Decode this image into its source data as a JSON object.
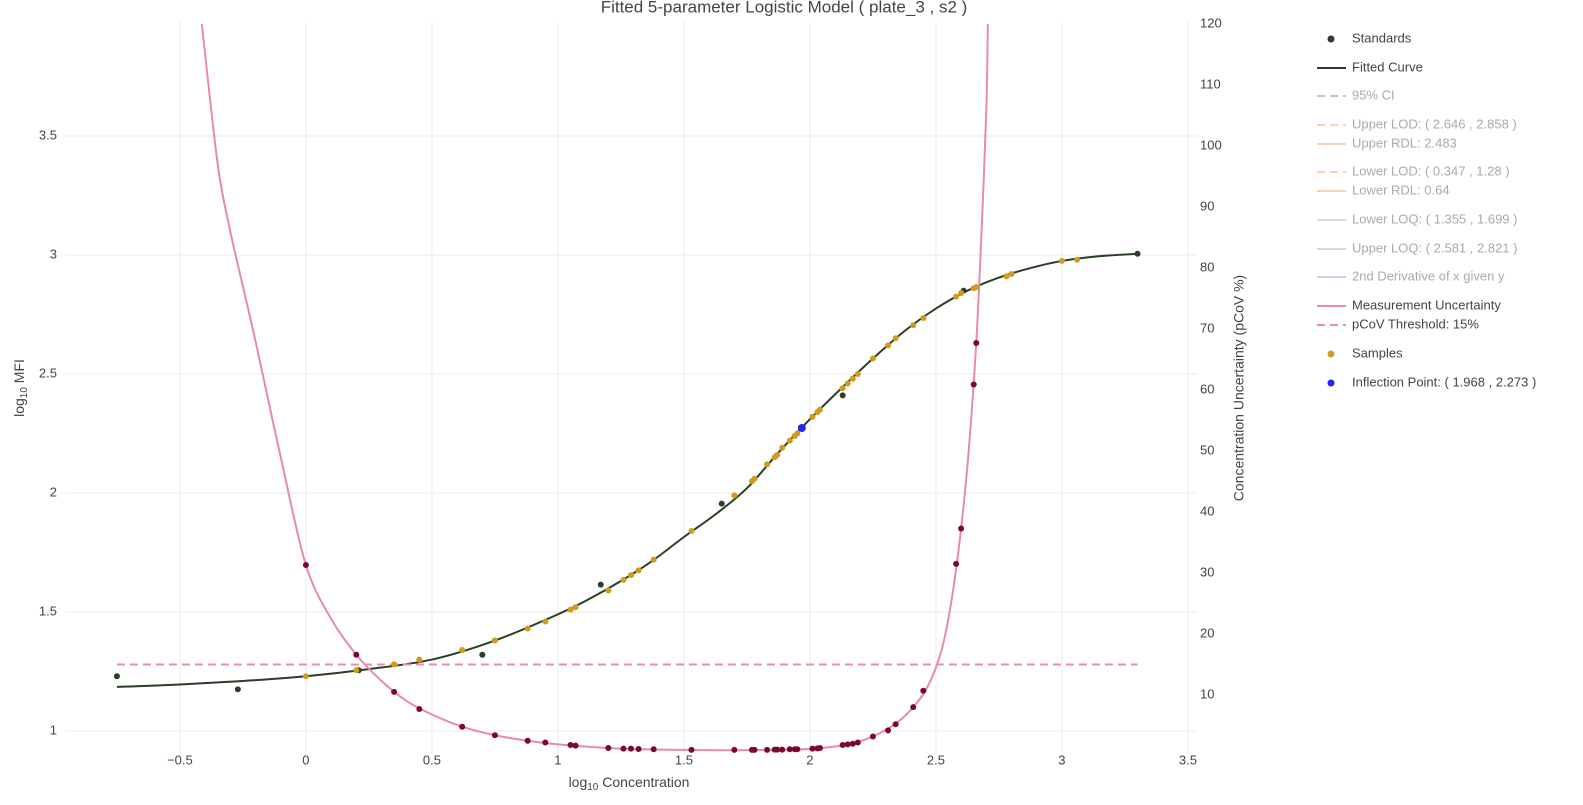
{
  "chart_data": {
    "type": "scatter",
    "title": "Fitted 5-parameter Logistic Model ( plate_3 , s2 )",
    "x_label": [
      "log",
      "10",
      " Concentration"
    ],
    "y_label": [
      "log",
      "10",
      " MFI"
    ],
    "y2_label": "Concentration Uncertainty (pCoV %)",
    "xlim": [
      -0.956,
      3.536
    ],
    "ylim": [
      0.899,
      3.979
    ],
    "y2lim": [
      0.16,
      120.33
    ],
    "xticks": [
      {
        "value": -0.5,
        "label": "−0.5"
      },
      0,
      0.5,
      1,
      1.5,
      2,
      2.5,
      3,
      3.5
    ],
    "yticks": [
      1,
      1.5,
      2,
      2.5,
      3,
      3.5
    ],
    "y2ticks": [
      10,
      20,
      30,
      40,
      50,
      60,
      70,
      80,
      90,
      100,
      110,
      120
    ],
    "grid": true,
    "series": [
      {
        "name": "Standards",
        "color": "#2c3e27",
        "mode": "markers",
        "x": [
          -0.75,
          -0.27,
          0.21,
          0.7,
          1.17,
          1.65,
          2.13,
          2.61,
          3.3
        ],
        "values": [
          1.23,
          1.175,
          1.255,
          1.32,
          1.615,
          1.955,
          2.41,
          2.85,
          3.005
        ]
      },
      {
        "name": "Fitted Curve",
        "color": "#2a3f25",
        "mode": "lines",
        "x": [
          -0.75,
          -0.5,
          -0.25,
          0,
          0.25,
          0.5,
          0.75,
          1.0,
          1.125,
          1.25,
          1.375,
          1.5,
          1.625,
          1.75,
          1.875,
          2.0,
          2.125,
          2.25,
          2.375,
          2.5,
          2.625,
          2.75,
          2.875,
          3.0,
          3.15,
          3.3
        ],
        "values": [
          1.185,
          1.195,
          1.21,
          1.23,
          1.26,
          1.3,
          1.38,
          1.49,
          1.555,
          1.63,
          1.715,
          1.815,
          1.91,
          2.02,
          2.17,
          2.31,
          2.44,
          2.565,
          2.68,
          2.775,
          2.85,
          2.905,
          2.945,
          2.975,
          2.995,
          3.005
        ]
      },
      {
        "name": "95% CI",
        "color": "#8a8a8a",
        "mode": "lines",
        "dash": true,
        "visible": false
      },
      {
        "name": "Upper LOD: ( 2.646 , 2.858 )",
        "color": "#f4a57a",
        "mode": "lines",
        "dash": true,
        "visible": false
      },
      {
        "name": "Upper RDL: 2.483",
        "color": "#f4a57a",
        "mode": "lines",
        "visible": false
      },
      {
        "name": "Lower LOD: ( 0.347 , 1.28 )",
        "color": "#f4a57a",
        "mode": "lines",
        "dash": true,
        "visible": false
      },
      {
        "name": "Lower RDL: 0.64",
        "color": "#f4a57a",
        "mode": "lines",
        "visible": false
      },
      {
        "name": "Lower LOQ: ( 1.355 , 1.699 )",
        "color": "#c9a6d0",
        "mode": "lines",
        "visible": false
      },
      {
        "name": "Upper LOQ: ( 2.581 , 2.821 )",
        "color": "#c9a6d0",
        "mode": "lines",
        "visible": false
      },
      {
        "name": "2nd Derivative of x given y",
        "color": "#a9a0d8",
        "mode": "lines",
        "visible": false
      },
      {
        "name": "Measurement Uncertainty",
        "color": "#e88aae",
        "mode": "lines",
        "axis": "y2",
        "x": [
          -0.413,
          -0.35,
          -0.3,
          -0.25,
          -0.2,
          -0.1,
          0,
          0.1,
          0.2,
          0.3,
          0.4,
          0.5,
          0.62,
          0.75,
          0.88,
          1.0,
          1.25,
          1.5,
          1.75,
          2.0,
          2.15,
          2.25,
          2.35,
          2.42,
          2.47,
          2.52,
          2.56,
          2.6,
          2.63,
          2.66,
          2.68,
          2.7,
          2.706
        ],
        "values": [
          120,
          97,
          86,
          77,
          68,
          49,
          31.3,
          22.5,
          16.6,
          12.3,
          9.0,
          6.8,
          4.8,
          3.4,
          2.5,
          1.9,
          1.2,
          1.0,
          0.95,
          1.15,
          1.9,
          3.2,
          5.6,
          8.5,
          11.6,
          17,
          25,
          37.3,
          50,
          67.7,
          85,
          106,
          120
        ]
      },
      {
        "name": "pCoV Threshold: 15%",
        "color": "#f08ab0",
        "mode": "lines",
        "dash": true,
        "axis": "y2",
        "x": [
          -0.75,
          3.3
        ],
        "values": [
          15,
          15
        ]
      },
      {
        "name": "Samples",
        "color": "#d49a1e",
        "mode": "markers",
        "x": [
          0,
          0.2,
          0.35,
          0.45,
          0.62,
          0.75,
          0.88,
          0.95,
          1.05,
          1.07,
          1.2,
          1.26,
          1.29,
          1.32,
          1.38,
          1.53,
          1.7,
          1.77,
          1.78,
          1.83,
          1.86,
          1.87,
          1.89,
          1.92,
          1.94,
          1.95,
          2.01,
          2.03,
          2.04,
          2.13,
          2.15,
          2.17,
          2.19,
          2.25,
          2.31,
          2.34,
          2.41,
          2.45,
          2.58,
          2.6,
          2.65,
          2.66,
          2.78,
          2.8,
          3.0,
          3.06
        ],
        "values": [
          1.23,
          1.255,
          1.28,
          1.3,
          1.34,
          1.38,
          1.43,
          1.46,
          1.51,
          1.52,
          1.59,
          1.635,
          1.655,
          1.675,
          1.72,
          1.84,
          1.99,
          2.05,
          2.06,
          2.12,
          2.15,
          2.16,
          2.19,
          2.22,
          2.24,
          2.25,
          2.32,
          2.34,
          2.35,
          2.44,
          2.46,
          2.48,
          2.5,
          2.565,
          2.62,
          2.65,
          2.705,
          2.735,
          2.825,
          2.84,
          2.86,
          2.865,
          2.91,
          2.92,
          2.975,
          2.98
        ]
      },
      {
        "name": "Inflection Point: ( 1.968 , 2.273 )",
        "color": "#2525f5",
        "mode": "markers",
        "size": 4,
        "x": [
          1.968
        ],
        "values": [
          2.273
        ]
      },
      {
        "color": "#7b0830",
        "mode": "markers",
        "axis": "y2",
        "x": [
          0,
          0.2,
          0.35,
          0.45,
          0.62,
          0.75,
          0.88,
          0.95,
          1.05,
          1.07,
          1.2,
          1.26,
          1.29,
          1.32,
          1.38,
          1.53,
          1.7,
          1.77,
          1.78,
          1.83,
          1.86,
          1.87,
          1.89,
          1.92,
          1.94,
          1.95,
          2.01,
          2.03,
          2.04,
          2.13,
          2.15,
          2.17,
          2.19,
          2.25,
          2.31,
          2.34,
          2.41,
          2.45,
          2.58,
          2.6,
          2.65,
          2.66
        ],
        "values": [
          31.3,
          16.6,
          10.5,
          7.7,
          4.8,
          3.4,
          2.5,
          2.2,
          1.8,
          1.7,
          1.3,
          1.2,
          1.2,
          1.15,
          1.1,
          1.0,
          1.0,
          1.0,
          1.0,
          1.0,
          1.05,
          1.05,
          1.05,
          1.1,
          1.1,
          1.1,
          1.2,
          1.25,
          1.3,
          1.8,
          1.9,
          2.0,
          2.2,
          3.2,
          4.2,
          5.2,
          8.0,
          10.7,
          31.5,
          37.3,
          60.9,
          67.7
        ]
      }
    ]
  }
}
